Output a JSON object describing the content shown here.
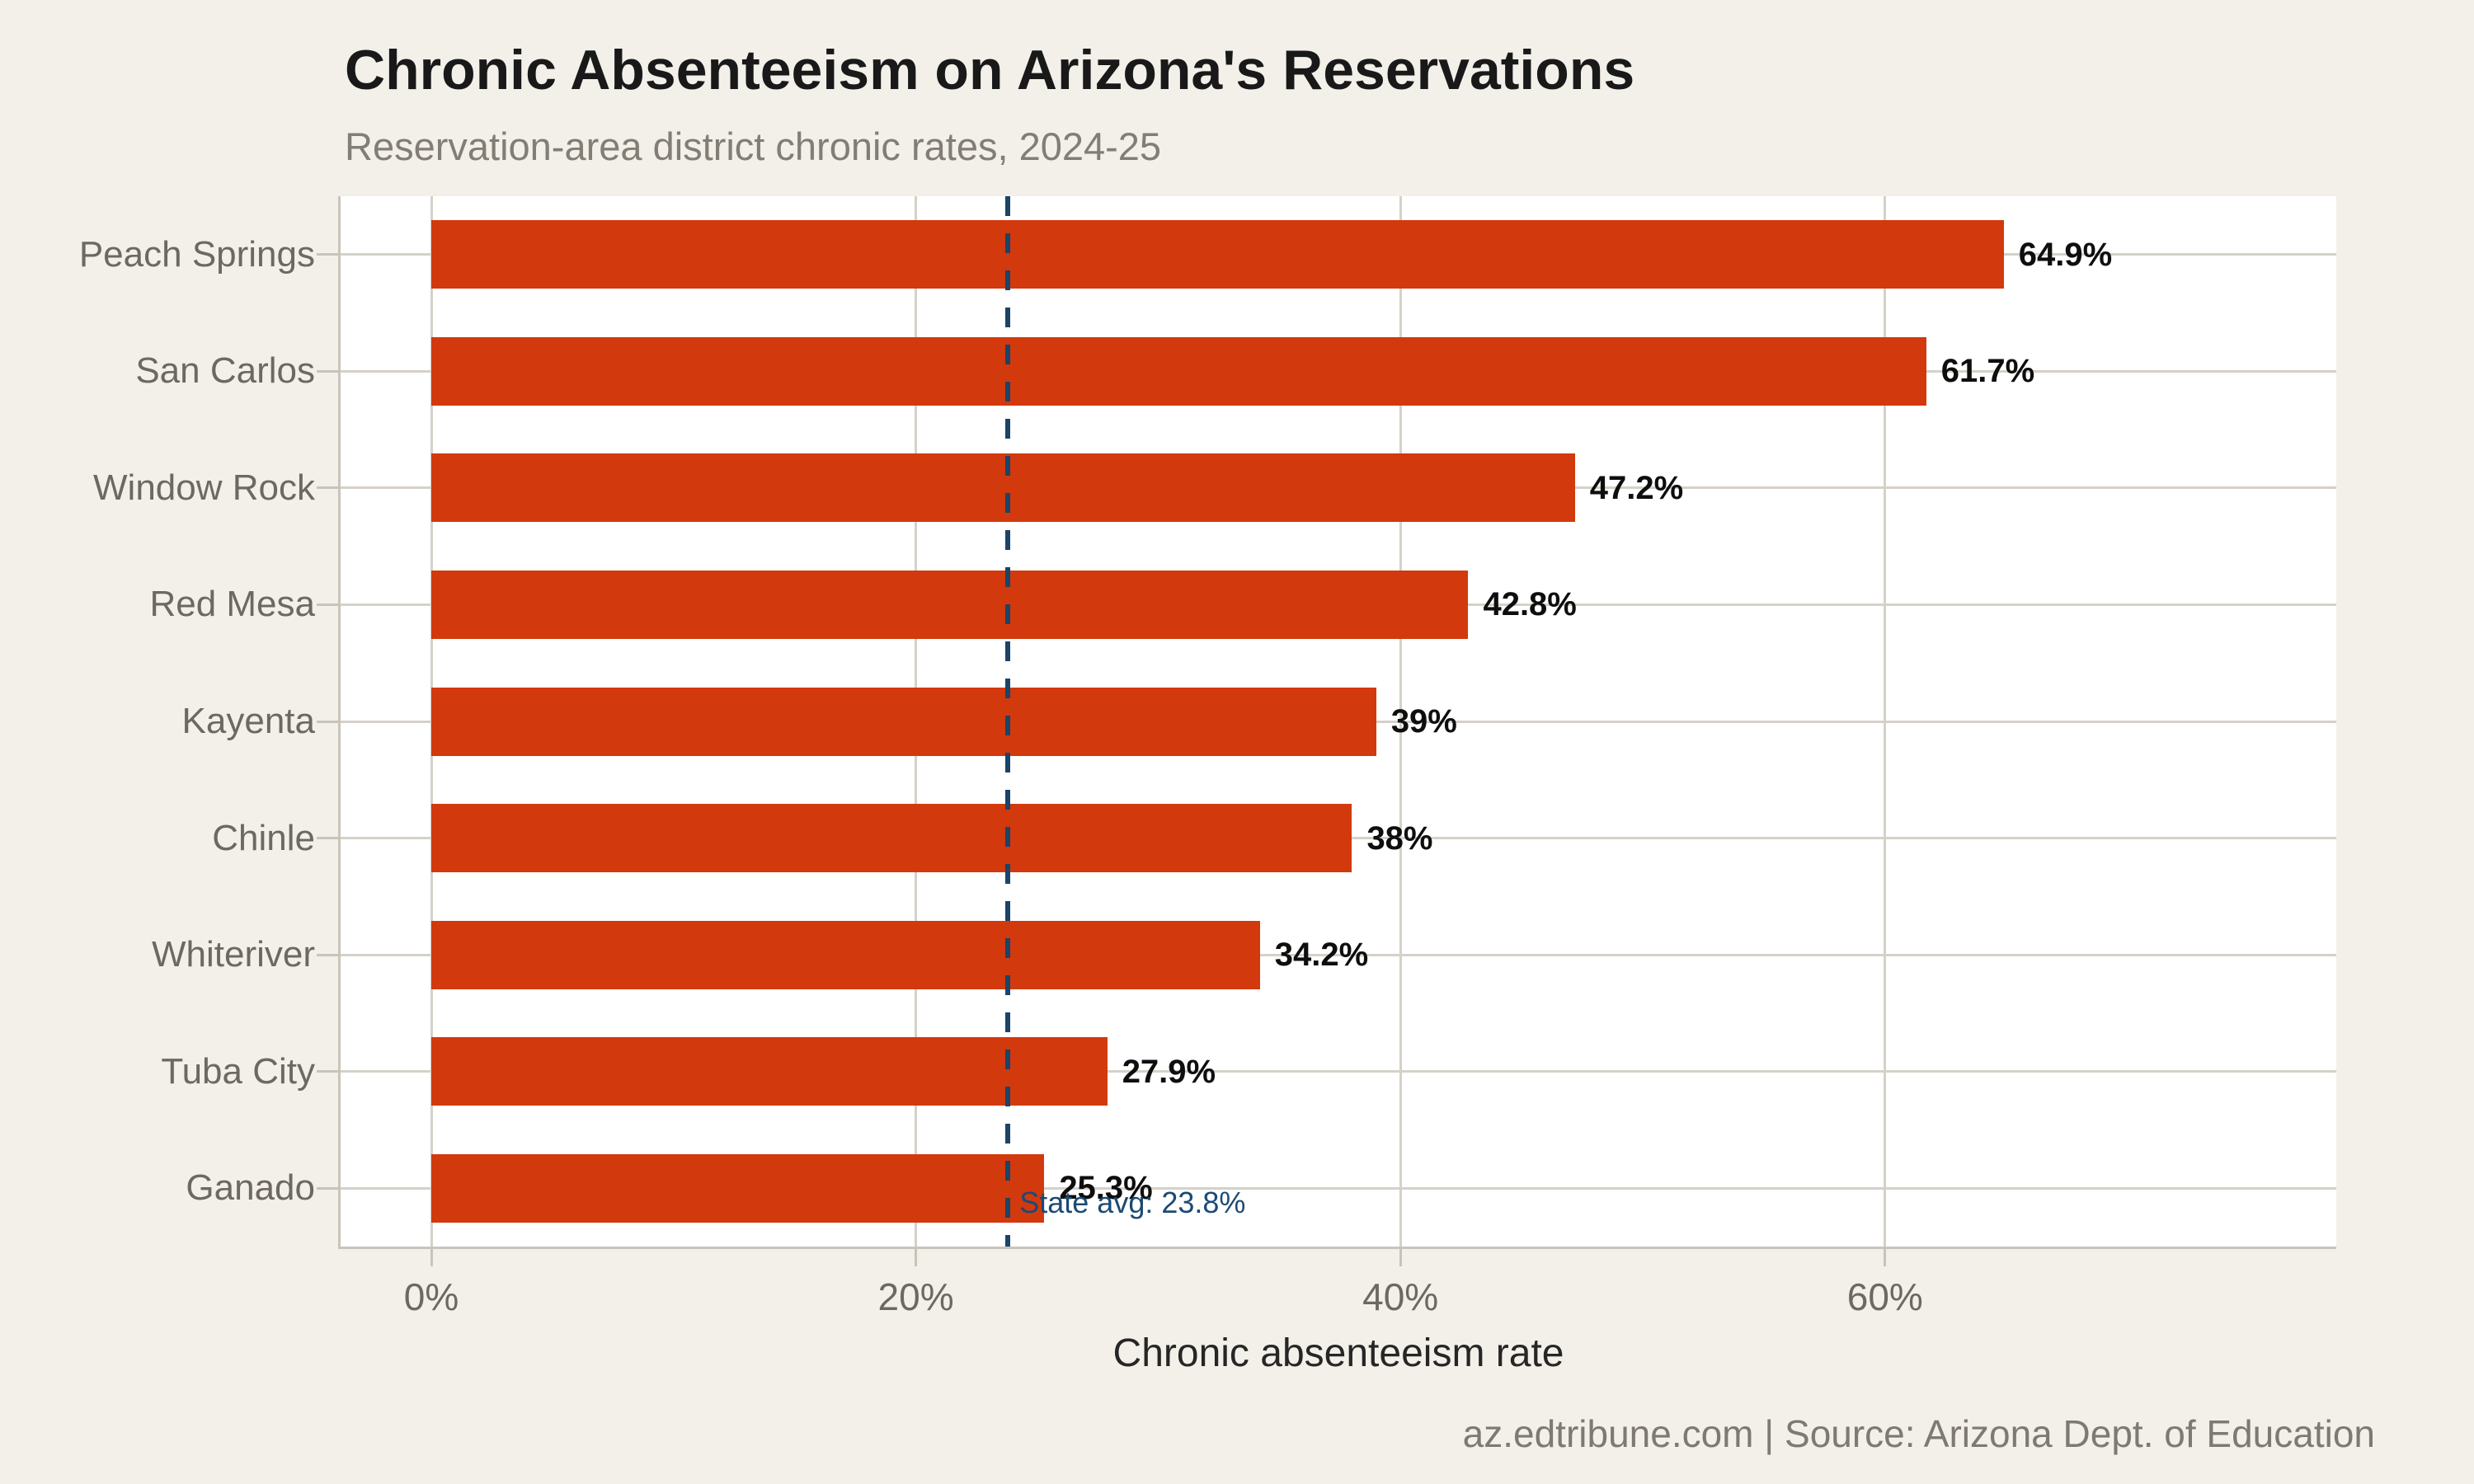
{
  "header": {
    "title": "Chronic Absenteeism on Arizona's Reservations",
    "subtitle": "Reservation-area district chronic rates, 2024-25"
  },
  "footer": {
    "source_text": "az.edtribune.com | Source: Arizona Dept. of Education"
  },
  "chart_data": {
    "type": "bar",
    "orientation": "horizontal",
    "title": "Chronic Absenteeism on Arizona's Reservations",
    "subtitle": "Reservation-area district chronic rates, 2024-25",
    "xlabel": "Chronic absenteeism rate",
    "ylabel": "",
    "categories": [
      "Peach Springs",
      "San Carlos",
      "Window Rock",
      "Red Mesa",
      "Kayenta",
      "Chinle",
      "Whiteriver",
      "Tuba City",
      "Ganado"
    ],
    "values": [
      64.9,
      61.7,
      47.2,
      42.8,
      39,
      38,
      34.2,
      27.9,
      25.3
    ],
    "value_labels": [
      "64.9%",
      "61.7%",
      "47.2%",
      "42.8%",
      "39%",
      "38%",
      "34.2%",
      "27.9%",
      "25.3%"
    ],
    "x_ticks": [
      {
        "value": 0,
        "label": "0%"
      },
      {
        "value": 20,
        "label": "20%"
      },
      {
        "value": 40,
        "label": "40%"
      },
      {
        "value": 60,
        "label": "60%"
      }
    ],
    "xlim": [
      -3.74,
      78.6
    ],
    "grid": true,
    "legend": null,
    "reference_line": {
      "value": 23.8,
      "label": "State avg: 23.8%"
    },
    "colors": {
      "bar": "#d2390d",
      "reference_line": "#1b4468",
      "reference_label": "#1b4a74",
      "background": "#f3f0e9",
      "plot_background": "#ffffff",
      "gridline": "#d6d1c8",
      "axis_spine": "#c9c4ba",
      "title_text": "#191919",
      "subtitle_text": "#827d75",
      "axis_label_text": "#6d6862",
      "value_label_text": "#0e0e0e"
    }
  }
}
